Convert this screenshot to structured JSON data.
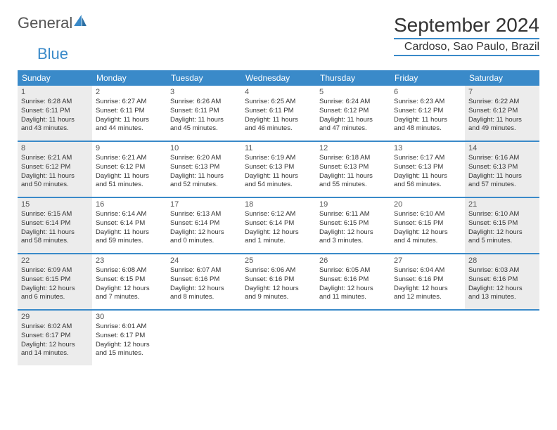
{
  "logo": {
    "main": "General",
    "accent": "Blue"
  },
  "title": "September 2024",
  "location": "Cardoso, Sao Paulo, Brazil",
  "colors": {
    "accent": "#3a8ac9",
    "shaded_bg": "#ececec",
    "text": "#333333",
    "page_bg": "#ffffff"
  },
  "day_names": [
    "Sunday",
    "Monday",
    "Tuesday",
    "Wednesday",
    "Thursday",
    "Friday",
    "Saturday"
  ],
  "weeks": [
    [
      {
        "day": "1",
        "shaded": true,
        "sunrise": "Sunrise: 6:28 AM",
        "sunset": "Sunset: 6:11 PM",
        "daylight1": "Daylight: 11 hours",
        "daylight2": "and 43 minutes."
      },
      {
        "day": "2",
        "shaded": false,
        "sunrise": "Sunrise: 6:27 AM",
        "sunset": "Sunset: 6:11 PM",
        "daylight1": "Daylight: 11 hours",
        "daylight2": "and 44 minutes."
      },
      {
        "day": "3",
        "shaded": false,
        "sunrise": "Sunrise: 6:26 AM",
        "sunset": "Sunset: 6:11 PM",
        "daylight1": "Daylight: 11 hours",
        "daylight2": "and 45 minutes."
      },
      {
        "day": "4",
        "shaded": false,
        "sunrise": "Sunrise: 6:25 AM",
        "sunset": "Sunset: 6:11 PM",
        "daylight1": "Daylight: 11 hours",
        "daylight2": "and 46 minutes."
      },
      {
        "day": "5",
        "shaded": false,
        "sunrise": "Sunrise: 6:24 AM",
        "sunset": "Sunset: 6:12 PM",
        "daylight1": "Daylight: 11 hours",
        "daylight2": "and 47 minutes."
      },
      {
        "day": "6",
        "shaded": false,
        "sunrise": "Sunrise: 6:23 AM",
        "sunset": "Sunset: 6:12 PM",
        "daylight1": "Daylight: 11 hours",
        "daylight2": "and 48 minutes."
      },
      {
        "day": "7",
        "shaded": true,
        "sunrise": "Sunrise: 6:22 AM",
        "sunset": "Sunset: 6:12 PM",
        "daylight1": "Daylight: 11 hours",
        "daylight2": "and 49 minutes."
      }
    ],
    [
      {
        "day": "8",
        "shaded": true,
        "sunrise": "Sunrise: 6:21 AM",
        "sunset": "Sunset: 6:12 PM",
        "daylight1": "Daylight: 11 hours",
        "daylight2": "and 50 minutes."
      },
      {
        "day": "9",
        "shaded": false,
        "sunrise": "Sunrise: 6:21 AM",
        "sunset": "Sunset: 6:12 PM",
        "daylight1": "Daylight: 11 hours",
        "daylight2": "and 51 minutes."
      },
      {
        "day": "10",
        "shaded": false,
        "sunrise": "Sunrise: 6:20 AM",
        "sunset": "Sunset: 6:13 PM",
        "daylight1": "Daylight: 11 hours",
        "daylight2": "and 52 minutes."
      },
      {
        "day": "11",
        "shaded": false,
        "sunrise": "Sunrise: 6:19 AM",
        "sunset": "Sunset: 6:13 PM",
        "daylight1": "Daylight: 11 hours",
        "daylight2": "and 54 minutes."
      },
      {
        "day": "12",
        "shaded": false,
        "sunrise": "Sunrise: 6:18 AM",
        "sunset": "Sunset: 6:13 PM",
        "daylight1": "Daylight: 11 hours",
        "daylight2": "and 55 minutes."
      },
      {
        "day": "13",
        "shaded": false,
        "sunrise": "Sunrise: 6:17 AM",
        "sunset": "Sunset: 6:13 PM",
        "daylight1": "Daylight: 11 hours",
        "daylight2": "and 56 minutes."
      },
      {
        "day": "14",
        "shaded": true,
        "sunrise": "Sunrise: 6:16 AM",
        "sunset": "Sunset: 6:13 PM",
        "daylight1": "Daylight: 11 hours",
        "daylight2": "and 57 minutes."
      }
    ],
    [
      {
        "day": "15",
        "shaded": true,
        "sunrise": "Sunrise: 6:15 AM",
        "sunset": "Sunset: 6:14 PM",
        "daylight1": "Daylight: 11 hours",
        "daylight2": "and 58 minutes."
      },
      {
        "day": "16",
        "shaded": false,
        "sunrise": "Sunrise: 6:14 AM",
        "sunset": "Sunset: 6:14 PM",
        "daylight1": "Daylight: 11 hours",
        "daylight2": "and 59 minutes."
      },
      {
        "day": "17",
        "shaded": false,
        "sunrise": "Sunrise: 6:13 AM",
        "sunset": "Sunset: 6:14 PM",
        "daylight1": "Daylight: 12 hours",
        "daylight2": "and 0 minutes."
      },
      {
        "day": "18",
        "shaded": false,
        "sunrise": "Sunrise: 6:12 AM",
        "sunset": "Sunset: 6:14 PM",
        "daylight1": "Daylight: 12 hours",
        "daylight2": "and 1 minute."
      },
      {
        "day": "19",
        "shaded": false,
        "sunrise": "Sunrise: 6:11 AM",
        "sunset": "Sunset: 6:15 PM",
        "daylight1": "Daylight: 12 hours",
        "daylight2": "and 3 minutes."
      },
      {
        "day": "20",
        "shaded": false,
        "sunrise": "Sunrise: 6:10 AM",
        "sunset": "Sunset: 6:15 PM",
        "daylight1": "Daylight: 12 hours",
        "daylight2": "and 4 minutes."
      },
      {
        "day": "21",
        "shaded": true,
        "sunrise": "Sunrise: 6:10 AM",
        "sunset": "Sunset: 6:15 PM",
        "daylight1": "Daylight: 12 hours",
        "daylight2": "and 5 minutes."
      }
    ],
    [
      {
        "day": "22",
        "shaded": true,
        "sunrise": "Sunrise: 6:09 AM",
        "sunset": "Sunset: 6:15 PM",
        "daylight1": "Daylight: 12 hours",
        "daylight2": "and 6 minutes."
      },
      {
        "day": "23",
        "shaded": false,
        "sunrise": "Sunrise: 6:08 AM",
        "sunset": "Sunset: 6:15 PM",
        "daylight1": "Daylight: 12 hours",
        "daylight2": "and 7 minutes."
      },
      {
        "day": "24",
        "shaded": false,
        "sunrise": "Sunrise: 6:07 AM",
        "sunset": "Sunset: 6:16 PM",
        "daylight1": "Daylight: 12 hours",
        "daylight2": "and 8 minutes."
      },
      {
        "day": "25",
        "shaded": false,
        "sunrise": "Sunrise: 6:06 AM",
        "sunset": "Sunset: 6:16 PM",
        "daylight1": "Daylight: 12 hours",
        "daylight2": "and 9 minutes."
      },
      {
        "day": "26",
        "shaded": false,
        "sunrise": "Sunrise: 6:05 AM",
        "sunset": "Sunset: 6:16 PM",
        "daylight1": "Daylight: 12 hours",
        "daylight2": "and 11 minutes."
      },
      {
        "day": "27",
        "shaded": false,
        "sunrise": "Sunrise: 6:04 AM",
        "sunset": "Sunset: 6:16 PM",
        "daylight1": "Daylight: 12 hours",
        "daylight2": "and 12 minutes."
      },
      {
        "day": "28",
        "shaded": true,
        "sunrise": "Sunrise: 6:03 AM",
        "sunset": "Sunset: 6:16 PM",
        "daylight1": "Daylight: 12 hours",
        "daylight2": "and 13 minutes."
      }
    ],
    [
      {
        "day": "29",
        "shaded": true,
        "sunrise": "Sunrise: 6:02 AM",
        "sunset": "Sunset: 6:17 PM",
        "daylight1": "Daylight: 12 hours",
        "daylight2": "and 14 minutes."
      },
      {
        "day": "30",
        "shaded": false,
        "sunrise": "Sunrise: 6:01 AM",
        "sunset": "Sunset: 6:17 PM",
        "daylight1": "Daylight: 12 hours",
        "daylight2": "and 15 minutes."
      },
      null,
      null,
      null,
      null,
      null
    ]
  ]
}
